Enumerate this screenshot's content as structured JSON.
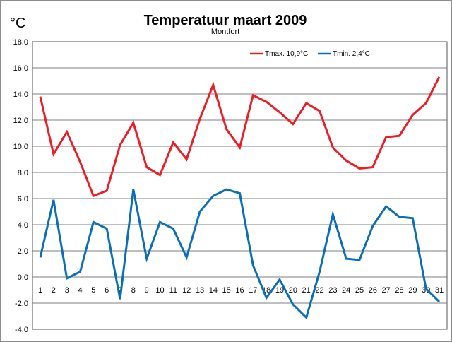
{
  "chart_data": {
    "type": "line",
    "title": "Temperatuur maart 2009",
    "subtitle": "Montfort",
    "ylabel": "°C",
    "xlabel": "",
    "ylim": [
      -4,
      18
    ],
    "ytick_step": 2,
    "ytick_labels": [
      "18,0",
      "16,0",
      "14,0",
      "12,0",
      "10,0",
      "8,0",
      "6,0",
      "4,0",
      "2,0",
      "0,0",
      "-2,0",
      "-4,0"
    ],
    "categories": [
      "1",
      "2",
      "3",
      "4",
      "5",
      "6",
      "7",
      "8",
      "9",
      "10",
      "11",
      "12",
      "13",
      "14",
      "15",
      "16",
      "17",
      "18",
      "19",
      "20",
      "21",
      "22",
      "23",
      "24",
      "25",
      "26",
      "27",
      "28",
      "29",
      "30",
      "31"
    ],
    "grid": true,
    "legend_position": "top-right",
    "series": [
      {
        "name": "Tmax. 10,9°C",
        "color": "#ee1c25",
        "values": [
          13.8,
          9.4,
          11.1,
          8.8,
          6.2,
          6.6,
          10.1,
          11.8,
          8.4,
          7.8,
          10.3,
          9.0,
          12.1,
          14.7,
          11.3,
          9.9,
          13.9,
          13.4,
          12.6,
          11.7,
          13.3,
          12.7,
          9.9,
          8.9,
          8.3,
          8.4,
          10.7,
          10.8,
          12.4,
          13.3,
          15.3
        ]
      },
      {
        "name": "Tmin. 2,4°C",
        "color": "#0b6fb8",
        "values": [
          1.5,
          5.9,
          -0.1,
          0.4,
          4.2,
          3.7,
          -1.7,
          6.7,
          1.4,
          4.2,
          3.7,
          1.5,
          5.0,
          6.2,
          6.7,
          6.4,
          0.9,
          -1.6,
          -0.2,
          -2.1,
          -3.1,
          0.4,
          4.8,
          1.4,
          1.3,
          3.9,
          5.4,
          4.6,
          4.5,
          -0.9,
          -1.9
        ]
      }
    ]
  }
}
